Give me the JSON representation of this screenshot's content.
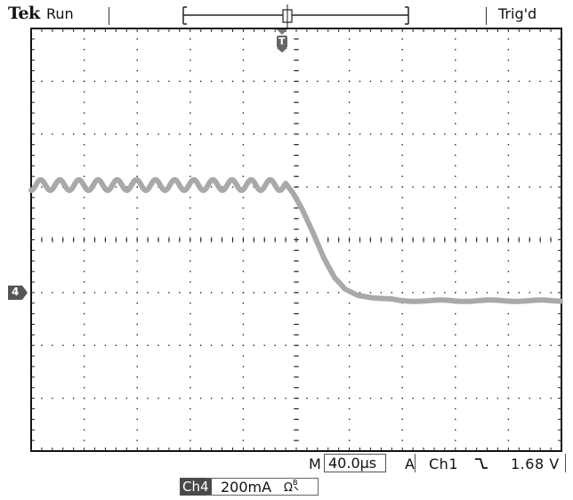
{
  "header": {
    "brand": "Tek",
    "acquisition_state": "Run",
    "trigger_state": "Trig'd"
  },
  "markers": {
    "trigger_marker_label": "T",
    "channel_marker_label": "4"
  },
  "footer": {
    "timebase_prefix": "M",
    "timebase": "40.0µs",
    "trigger_mode": "A",
    "trigger_channel": "Ch1",
    "trigger_slope_icon": "falling-edge-icon",
    "trigger_level": "1.68 V",
    "channel_label": "Ch4",
    "channel_scale": "200mA",
    "channel_units_icon": "Ω",
    "bandwidth_icon": "bandwidth-limit-icon"
  },
  "colors": {
    "trace": "#a8a8a8",
    "grid": "#000000",
    "text": "#111111",
    "badge": "#4a4a4a"
  }
}
